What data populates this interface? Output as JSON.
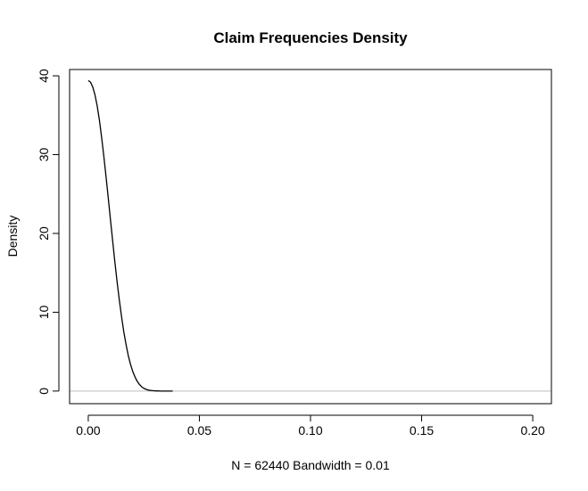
{
  "chart_data": {
    "type": "line",
    "title": "Claim Frequencies Density",
    "xlabel": "N = 62440   Bandwidth = 0.01",
    "ylabel": "Density",
    "xlim": [
      -0.0084,
      0.2084
    ],
    "ylim": [
      -1.6,
      40.8
    ],
    "x_ticks": [
      0.0,
      0.05,
      0.1,
      0.15,
      0.2
    ],
    "x_tick_labels": [
      "0.00",
      "0.05",
      "0.10",
      "0.15",
      "0.20"
    ],
    "y_ticks": [
      0,
      10,
      20,
      30,
      40
    ],
    "y_tick_labels": [
      "0",
      "10",
      "20",
      "30",
      "40"
    ],
    "baseline": {
      "y": 0,
      "color": "#bebebe"
    },
    "grid": false,
    "legend": "none",
    "line_color": "#000000",
    "series": [
      {
        "x": [
          0.0,
          0.001,
          0.002,
          0.003,
          0.004,
          0.005,
          0.006,
          0.007,
          0.008,
          0.009,
          0.01,
          0.011,
          0.012,
          0.013,
          0.014,
          0.015,
          0.016,
          0.017,
          0.018,
          0.019,
          0.02,
          0.021,
          0.022,
          0.023,
          0.024,
          0.025,
          0.026,
          0.027,
          0.028,
          0.029,
          0.03,
          0.031,
          0.032,
          0.033,
          0.034,
          0.035,
          0.036,
          0.037,
          0.038
        ],
        "y": [
          39.4,
          39.2,
          38.6,
          37.6,
          36.2,
          34.4,
          32.2,
          29.8,
          27.2,
          24.5,
          21.7,
          19.0,
          16.3,
          13.8,
          11.5,
          9.4,
          7.5,
          5.9,
          4.5,
          3.4,
          2.5,
          1.8,
          1.25,
          0.85,
          0.55,
          0.35,
          0.22,
          0.13,
          0.08,
          0.05,
          0.03,
          0.02,
          0.01,
          0.0,
          0.0,
          0.0,
          0.0,
          0.0,
          0.0
        ]
      }
    ]
  }
}
